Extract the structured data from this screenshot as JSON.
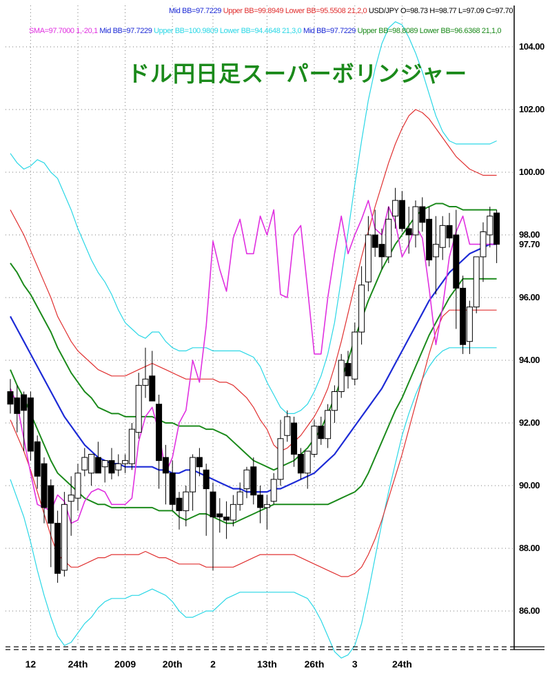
{
  "header": {
    "line1": [
      {
        "text": "Mid BB=97.7229",
        "color": "#1d2bd6"
      },
      {
        "text": "Upper BB=99.8949",
        "color": "#e03030"
      },
      {
        "text": "Lower BB=95.5508",
        "color": "#e03030"
      },
      {
        "text": "21,2,0",
        "color": "#e03030"
      },
      {
        "text": "USD/JPY O=98.73 H=98.77 L=97.09 C=97.70",
        "color": "#000000"
      }
    ],
    "line2": [
      {
        "text": "SMA=97.7000  1,-20,1",
        "color": "#e030e0"
      },
      {
        "text": "Mid BB=97.7229",
        "color": "#1d2bd6"
      },
      {
        "text": "Upper BB=100.9809",
        "color": "#2ad7e6"
      },
      {
        "text": "Lower BB=94.4648",
        "color": "#2ad7e6"
      },
      {
        "text": "21,3,0",
        "color": "#2ad7e6"
      },
      {
        "text": "Mid BB=97.7229",
        "color": "#1d2bd6"
      },
      {
        "text": "Upper BB=98.8089",
        "color": "#1b8a1b"
      },
      {
        "text": "Lower BB=96.6368",
        "color": "#1b8a1b"
      },
      {
        "text": "21,1,0",
        "color": "#1b8a1b"
      }
    ]
  },
  "chart_data": {
    "type": "candlestick",
    "title": "ドル円日足スーパーボリンジャー",
    "symbol": "USD/JPY",
    "ylim": [
      84.4,
      104.8
    ],
    "y_ticks": [
      "104.00",
      "102.00",
      "100.00",
      "98.00",
      "96.00",
      "94.00",
      "92.00",
      "90.00",
      "88.00",
      "86.00"
    ],
    "last_price_label": "97.70",
    "x_tick_labels": [
      {
        "label": "12",
        "index": 3
      },
      {
        "label": "24th",
        "index": 10
      },
      {
        "label": "2009",
        "index": 17
      },
      {
        "label": "20th",
        "index": 24
      },
      {
        "label": "2",
        "index": 30
      },
      {
        "label": "13th",
        "index": 38
      },
      {
        "label": "26th",
        "index": 45
      },
      {
        "label": "3",
        "index": 51
      },
      {
        "label": "24th",
        "index": 58
      }
    ],
    "candles": [
      [
        93.0,
        93.4,
        92.3,
        92.6
      ],
      [
        92.8,
        93.2,
        91.7,
        92.3
      ],
      [
        92.9,
        93.0,
        91.1,
        92.4
      ],
      [
        92.8,
        93.0,
        90.8,
        91.1
      ],
      [
        91.4,
        91.6,
        89.9,
        90.3
      ],
      [
        90.7,
        90.9,
        88.8,
        89.3
      ],
      [
        90.0,
        90.2,
        87.4,
        88.8
      ],
      [
        88.8,
        89.2,
        86.9,
        87.2
      ],
      [
        87.3,
        89.8,
        87.1,
        89.4
      ],
      [
        89.5,
        90.3,
        88.4,
        89.7
      ],
      [
        89.6,
        90.7,
        89.2,
        90.4
      ],
      [
        90.5,
        91.2,
        90.3,
        90.9
      ],
      [
        90.4,
        91.0,
        90.0,
        91.0
      ],
      [
        90.9,
        91.4,
        90.4,
        90.4
      ],
      [
        90.6,
        90.8,
        90.1,
        90.8
      ],
      [
        90.8,
        91.2,
        90.2,
        90.4
      ],
      [
        90.5,
        91.0,
        90.3,
        90.7
      ],
      [
        90.7,
        91.0,
        90.4,
        90.8
      ],
      [
        90.7,
        92.0,
        90.5,
        91.8
      ],
      [
        91.7,
        93.6,
        91.5,
        93.2
      ],
      [
        93.2,
        94.4,
        92.8,
        93.4
      ],
      [
        93.5,
        94.3,
        92.7,
        92.7
      ],
      [
        92.6,
        92.9,
        89.9,
        90.8
      ],
      [
        90.9,
        91.3,
        89.4,
        90.4
      ],
      [
        90.4,
        90.8,
        89.2,
        89.4
      ],
      [
        89.6,
        89.8,
        88.6,
        89.2
      ],
      [
        89.2,
        90.0,
        88.7,
        89.8
      ],
      [
        89.8,
        91.0,
        89.2,
        90.9
      ],
      [
        90.9,
        91.2,
        90.3,
        90.6
      ],
      [
        90.5,
        90.7,
        88.4,
        89.9
      ],
      [
        89.8,
        90.1,
        87.3,
        89.0
      ],
      [
        89.1,
        89.6,
        88.5,
        89.0
      ],
      [
        89.0,
        89.5,
        88.3,
        88.9
      ],
      [
        88.9,
        89.7,
        88.7,
        89.4
      ],
      [
        89.4,
        90.1,
        89.2,
        89.8
      ],
      [
        89.9,
        90.6,
        89.6,
        90.5
      ],
      [
        90.6,
        90.9,
        89.4,
        89.7
      ],
      [
        89.7,
        90.0,
        88.8,
        89.3
      ],
      [
        89.3,
        89.7,
        88.6,
        89.4
      ],
      [
        89.5,
        90.4,
        89.4,
        90.2
      ],
      [
        90.2,
        92.1,
        90.0,
        91.5
      ],
      [
        91.6,
        92.4,
        91.4,
        92.2
      ],
      [
        92.0,
        92.2,
        90.6,
        91.0
      ],
      [
        91.0,
        91.2,
        90.2,
        90.4
      ],
      [
        90.4,
        91.1,
        89.9,
        91.1
      ],
      [
        91.0,
        92.1,
        90.9,
        91.9
      ],
      [
        91.9,
        92.2,
        91.3,
        91.5
      ],
      [
        91.5,
        92.6,
        91.2,
        92.4
      ],
      [
        92.4,
        93.2,
        92.0,
        93.0
      ],
      [
        93.0,
        94.2,
        92.8,
        94.0
      ],
      [
        93.9,
        94.3,
        93.1,
        93.5
      ],
      [
        93.4,
        95.2,
        93.2,
        94.9
      ],
      [
        94.9,
        97.0,
        94.5,
        96.4
      ],
      [
        96.5,
        98.6,
        96.2,
        98.0
      ],
      [
        98.0,
        98.8,
        97.3,
        97.6
      ],
      [
        97.7,
        98.2,
        96.9,
        97.3
      ],
      [
        97.3,
        98.9,
        97.1,
        98.5
      ],
      [
        98.6,
        99.5,
        98.2,
        99.1
      ],
      [
        99.1,
        99.4,
        98.1,
        98.2
      ],
      [
        98.2,
        98.9,
        97.4,
        98.0
      ],
      [
        98.0,
        99.1,
        97.6,
        98.9
      ],
      [
        98.9,
        99.2,
        98.1,
        98.4
      ],
      [
        98.5,
        98.9,
        97.0,
        97.2
      ],
      [
        97.3,
        98.6,
        96.1,
        97.7
      ],
      [
        97.6,
        98.6,
        97.2,
        98.3
      ],
      [
        98.3,
        98.7,
        97.6,
        97.9
      ],
      [
        98.0,
        98.8,
        95.0,
        96.3
      ],
      [
        96.3,
        96.7,
        94.2,
        94.5
      ],
      [
        94.6,
        95.9,
        94.2,
        95.7
      ],
      [
        95.7,
        97.2,
        95.5,
        97.3
      ],
      [
        97.3,
        98.4,
        96.5,
        98.1
      ],
      [
        98.0,
        98.9,
        97.6,
        98.6
      ],
      [
        98.7,
        98.8,
        97.1,
        97.7
      ]
    ],
    "series": [
      {
        "name": "SMA=97.7000  1,-20,1",
        "color": "#e030e0",
        "width": 1.6,
        "values": [
          93.1,
          92.6,
          91.5,
          90.4,
          89.4,
          89.3,
          89.2,
          89.7,
          89.5,
          88.8,
          88.9,
          89.5,
          89.8,
          89.9,
          89.8,
          89.4,
          89.4,
          89.4,
          89.6,
          91.4,
          92.2,
          92.5,
          91.7,
          90.4,
          90.9,
          92.0,
          92.4,
          94.0,
          93.3,
          95.1,
          97.8,
          96.9,
          96.2,
          97.9,
          98.5,
          97.4,
          97.4,
          98.6,
          98.0,
          98.8,
          96.1,
          96.0,
          98.0,
          98.3,
          96.3,
          94.2,
          94.2,
          96.0,
          97.4,
          98.6,
          97.4,
          98.0,
          98.5,
          99.1,
          98.2,
          98.0,
          98.9,
          98.4,
          97.3,
          97.7,
          98.3,
          97.9,
          96.3,
          94.5,
          95.7,
          97.3,
          98.1,
          98.6,
          97.7,
          97.7,
          97.7,
          97.7,
          97.7
        ]
      },
      {
        "name": "Mid BB=97.7229",
        "color": "#1d2bd6",
        "width": 2.2,
        "values": [
          95.4,
          95.0,
          94.6,
          94.2,
          93.8,
          93.4,
          93.0,
          92.6,
          92.2,
          91.9,
          91.6,
          91.3,
          91.1,
          90.9,
          90.8,
          90.7,
          90.7,
          90.6,
          90.6,
          90.6,
          90.6,
          90.6,
          90.5,
          90.5,
          90.4,
          90.4,
          90.5,
          90.5,
          90.4,
          90.3,
          90.2,
          90.1,
          90.0,
          89.9,
          89.9,
          89.8,
          89.8,
          89.8,
          89.8,
          89.9,
          89.9,
          90.0,
          90.1,
          90.2,
          90.3,
          90.4,
          90.6,
          90.8,
          91.0,
          91.3,
          91.6,
          91.9,
          92.2,
          92.5,
          92.8,
          93.1,
          93.5,
          93.9,
          94.3,
          94.7,
          95.1,
          95.5,
          95.9,
          96.2,
          96.5,
          96.8,
          97.0,
          97.2,
          97.4,
          97.5,
          97.6,
          97.7,
          97.7
        ]
      },
      {
        "name": "Upper BB=98.8089",
        "color": "#1b8a1b",
        "width": 2,
        "values": [
          97.1,
          96.8,
          96.4,
          96.1,
          95.7,
          95.3,
          94.9,
          94.4,
          94.0,
          93.6,
          93.3,
          93.0,
          92.8,
          92.5,
          92.4,
          92.3,
          92.3,
          92.2,
          92.2,
          92.2,
          92.2,
          92.2,
          92.1,
          92.0,
          92.0,
          91.9,
          91.9,
          91.9,
          91.9,
          91.8,
          91.8,
          91.7,
          91.6,
          91.4,
          91.2,
          91.0,
          90.8,
          90.7,
          90.6,
          90.5,
          90.6,
          90.7,
          90.8,
          91.0,
          91.2,
          91.5,
          91.8,
          92.3,
          92.8,
          93.4,
          94.0,
          94.7,
          95.3,
          95.9,
          96.4,
          96.9,
          97.3,
          97.7,
          98.0,
          98.3,
          98.6,
          98.8,
          98.9,
          99.0,
          99.0,
          98.9,
          98.9,
          98.8,
          98.8,
          98.8,
          98.8,
          98.8,
          98.8
        ]
      },
      {
        "name": "Lower BB=96.6368",
        "color": "#1b8a1b",
        "width": 2,
        "values": [
          93.7,
          93.2,
          92.8,
          92.3,
          91.8,
          91.3,
          90.8,
          90.4,
          90.2,
          90.0,
          89.8,
          89.6,
          89.5,
          89.4,
          89.4,
          89.3,
          89.3,
          89.3,
          89.3,
          89.3,
          89.3,
          89.3,
          89.2,
          89.2,
          89.2,
          89.0,
          88.9,
          89.0,
          89.1,
          89.1,
          89.0,
          88.9,
          88.8,
          88.8,
          88.9,
          89.0,
          89.1,
          89.2,
          89.3,
          89.4,
          89.4,
          89.4,
          89.4,
          89.4,
          89.4,
          89.4,
          89.4,
          89.4,
          89.5,
          89.6,
          89.7,
          89.8,
          90.0,
          90.4,
          90.9,
          91.4,
          91.9,
          92.4,
          92.8,
          93.3,
          93.8,
          94.3,
          94.8,
          95.2,
          95.6,
          96.0,
          96.3,
          96.6,
          96.6,
          96.6,
          96.6,
          96.6,
          96.6
        ]
      },
      {
        "name": "Upper BB=99.8949",
        "color": "#e03030",
        "width": 1.2,
        "values": [
          98.8,
          98.4,
          98.0,
          97.5,
          97.0,
          96.5,
          96.0,
          95.4,
          95.0,
          94.6,
          94.3,
          94.1,
          93.9,
          93.7,
          93.6,
          93.5,
          93.5,
          93.5,
          93.6,
          93.7,
          93.8,
          93.9,
          93.8,
          93.7,
          93.6,
          93.5,
          93.4,
          93.4,
          93.4,
          93.4,
          93.4,
          93.3,
          93.3,
          93.2,
          93.0,
          92.8,
          92.5,
          92.1,
          91.8,
          91.3,
          91.1,
          91.2,
          91.4,
          91.6,
          91.9,
          92.2,
          92.6,
          93.1,
          93.8,
          94.6,
          95.5,
          96.4,
          97.3,
          98.1,
          98.9,
          99.6,
          100.3,
          100.9,
          101.4,
          101.8,
          102.0,
          101.9,
          101.7,
          101.4,
          101.1,
          100.8,
          100.5,
          100.3,
          100.1,
          100.0,
          99.9,
          99.9,
          99.9
        ]
      },
      {
        "name": "Lower BB=95.5508",
        "color": "#e03030",
        "width": 1.2,
        "values": [
          92.1,
          91.6,
          91.1,
          90.5,
          89.8,
          89.1,
          88.4,
          87.8,
          87.6,
          87.4,
          87.4,
          87.5,
          87.6,
          87.7,
          87.7,
          87.8,
          87.8,
          87.8,
          87.8,
          87.8,
          87.9,
          87.8,
          87.7,
          87.7,
          87.6,
          87.5,
          87.5,
          87.5,
          87.5,
          87.4,
          87.4,
          87.4,
          87.4,
          87.4,
          87.5,
          87.6,
          87.7,
          87.8,
          87.8,
          87.8,
          87.8,
          87.8,
          87.8,
          87.7,
          87.6,
          87.5,
          87.4,
          87.3,
          87.2,
          87.1,
          87.1,
          87.2,
          87.4,
          87.8,
          88.3,
          88.9,
          89.6,
          90.3,
          91.0,
          91.8,
          92.6,
          93.4,
          94.2,
          94.9,
          95.4,
          95.6,
          95.6,
          95.6,
          95.6,
          95.6,
          95.6,
          95.6,
          95.6
        ]
      },
      {
        "name": "Upper BB=100.9809",
        "color": "#2ad7e6",
        "width": 1.2,
        "values": [
          100.6,
          100.3,
          100.1,
          100.2,
          100.4,
          100.3,
          100.0,
          99.8,
          99.3,
          98.8,
          98.2,
          97.7,
          97.2,
          96.8,
          96.5,
          96.1,
          95.6,
          95.2,
          95.0,
          94.8,
          94.7,
          94.9,
          94.9,
          94.6,
          94.4,
          94.3,
          94.3,
          94.4,
          94.4,
          94.4,
          94.3,
          94.3,
          94.3,
          94.3,
          94.3,
          94.2,
          94.1,
          93.8,
          93.3,
          92.9,
          92.5,
          92.3,
          92.3,
          92.4,
          92.6,
          93.0,
          93.5,
          94.2,
          95.2,
          96.6,
          98.1,
          99.6,
          101.0,
          102.3,
          103.3,
          104.1,
          104.6,
          104.8,
          104.7,
          104.3,
          103.8,
          103.2,
          102.5,
          101.8,
          101.3,
          101.0,
          100.9,
          100.9,
          100.9,
          100.9,
          100.9,
          100.9,
          101.0
        ]
      },
      {
        "name": "Lower BB=94.4648",
        "color": "#2ad7e6",
        "width": 1.2,
        "values": [
          90.2,
          89.6,
          89.0,
          88.2,
          87.3,
          86.5,
          85.8,
          85.2,
          84.9,
          85.0,
          85.3,
          85.6,
          85.8,
          86.1,
          86.3,
          86.4,
          86.4,
          86.4,
          86.5,
          86.5,
          86.6,
          86.7,
          86.6,
          86.5,
          86.3,
          86.0,
          85.8,
          85.8,
          85.9,
          86.0,
          86.0,
          86.2,
          86.4,
          86.5,
          86.6,
          86.6,
          86.6,
          86.6,
          86.6,
          86.6,
          86.6,
          86.6,
          86.6,
          86.5,
          86.4,
          86.1,
          85.7,
          85.2,
          84.7,
          84.5,
          84.6,
          84.9,
          85.6,
          86.6,
          87.7,
          88.8,
          89.8,
          90.7,
          91.6,
          92.3,
          92.9,
          93.4,
          93.8,
          94.1,
          94.3,
          94.4,
          94.4,
          94.4,
          94.4,
          94.4,
          94.4,
          94.4,
          94.4
        ]
      }
    ],
    "grid": true,
    "background": "#ffffff",
    "candle_up_color": "#ffffff",
    "candle_down_color": "#000000"
  }
}
